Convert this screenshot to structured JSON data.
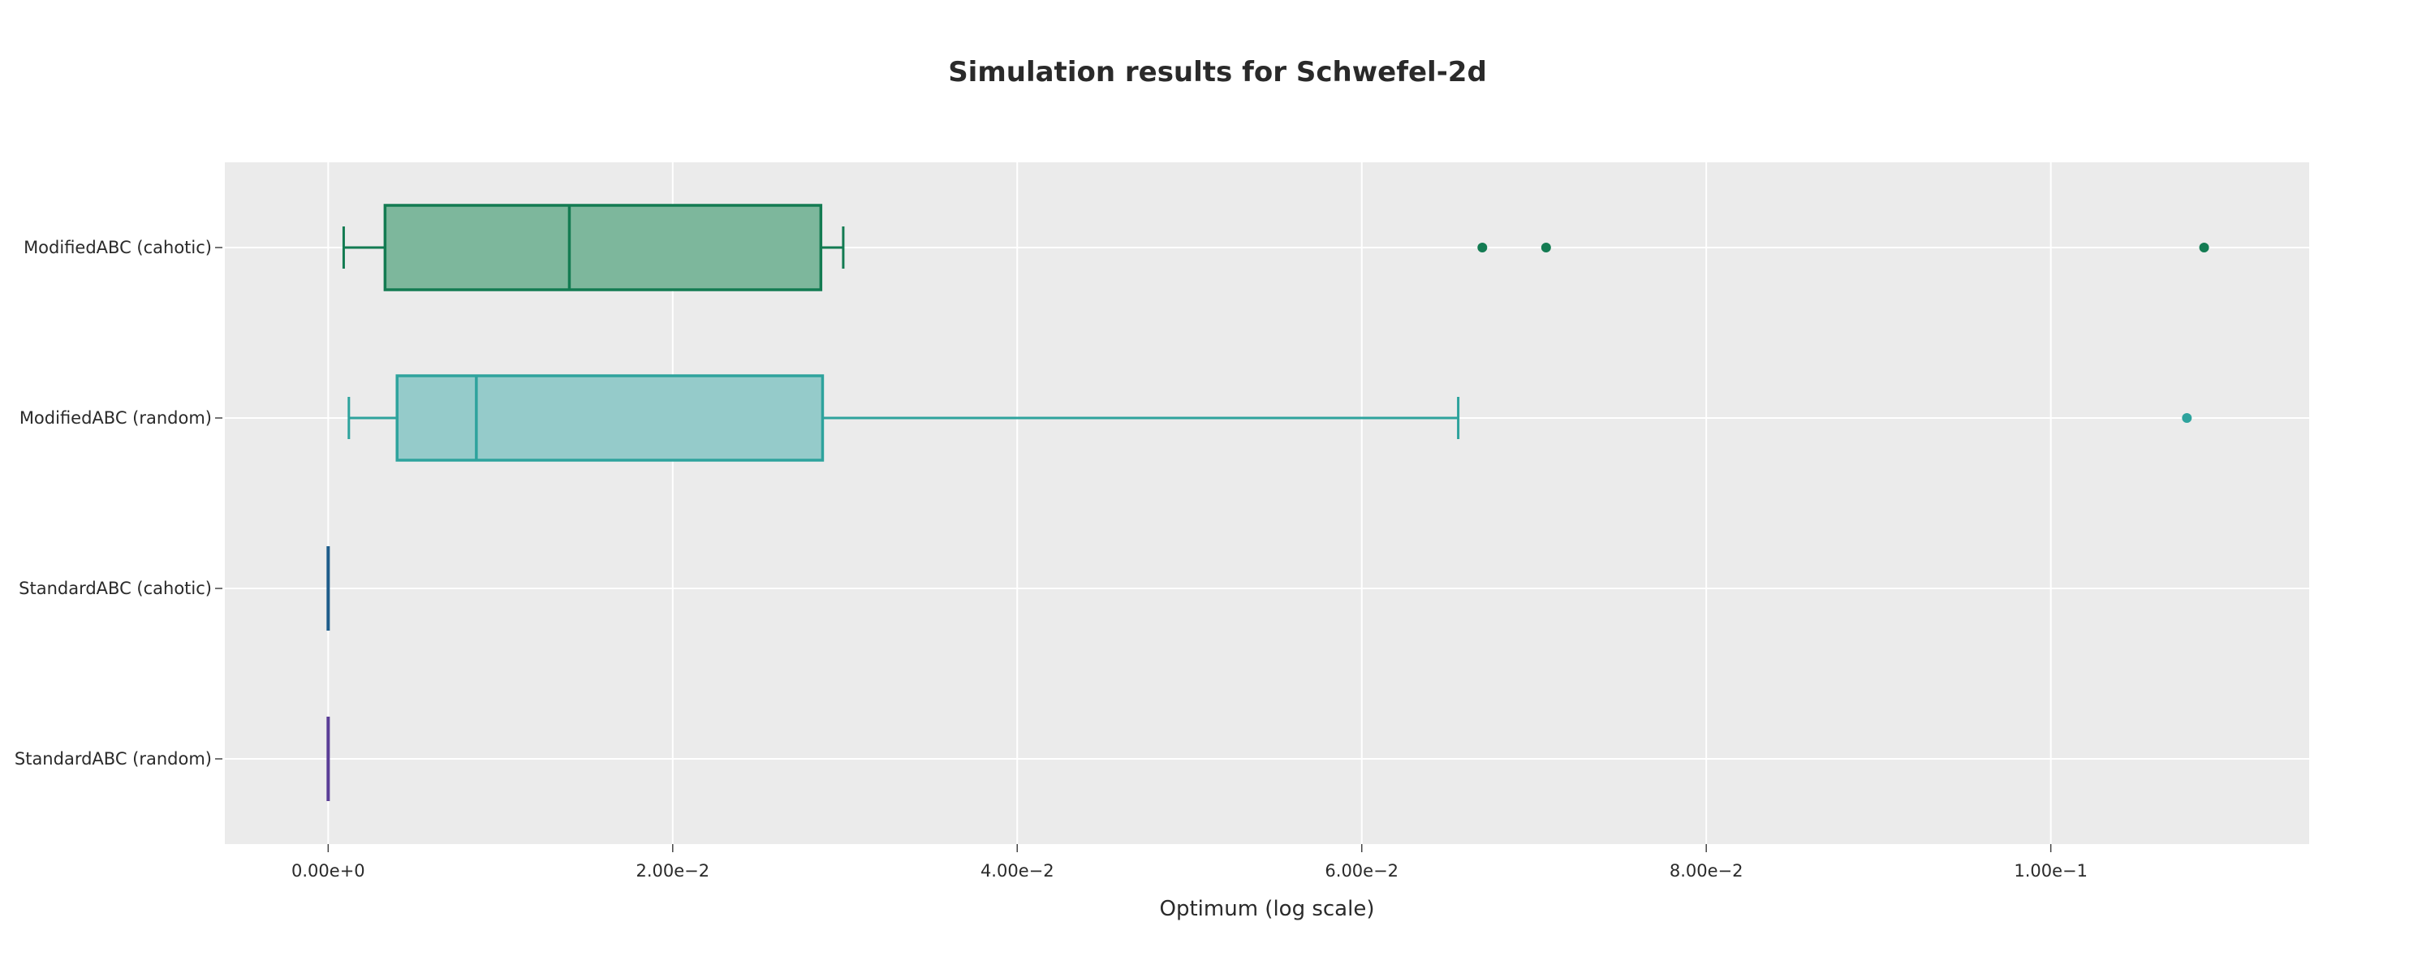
{
  "chart_data": {
    "type": "box",
    "orientation": "horizontal",
    "title": "Simulation results for Schwefel-2d",
    "xlabel": "Optimum (log scale)",
    "ylabel": "",
    "xlim": [
      -0.006,
      0.115
    ],
    "x_ticks": [
      0,
      0.02,
      0.04,
      0.06,
      0.08,
      0.1
    ],
    "x_tick_labels": [
      "0.00e+0",
      "2.00e−2",
      "4.00e−2",
      "6.00e−2",
      "8.00e−2",
      "1.00e−1"
    ],
    "grid": true,
    "legend": "none",
    "background": "#ebebeb",
    "series": [
      {
        "name": "ModifiedABC (cahotic)",
        "color": "#137b52",
        "fill": "#7db79c",
        "whisker_low": 0.0009,
        "q1": 0.0033,
        "median": 0.014,
        "q3": 0.0286,
        "whisker_high": 0.0299,
        "outliers": [
          0.067,
          0.0707,
          0.1089
        ]
      },
      {
        "name": "ModifiedABC (random)",
        "color": "#2ea39d",
        "fill": "#95cbca",
        "whisker_low": 0.0012,
        "q1": 0.004,
        "median": 0.0086,
        "q3": 0.0287,
        "whisker_high": 0.0656,
        "outliers": [
          0.1079
        ]
      },
      {
        "name": "StandardABC (cahotic)",
        "color": "#1e5c8a",
        "fill": "#1e5c8a",
        "whisker_low": 0,
        "q1": 0,
        "median": 0,
        "q3": 0,
        "whisker_high": 0,
        "outliers": []
      },
      {
        "name": "StandardABC (random)",
        "color": "#5a3d96",
        "fill": "#5a3d96",
        "whisker_low": 0,
        "q1": 0,
        "median": 0,
        "q3": 0,
        "whisker_high": 0,
        "outliers": []
      }
    ]
  }
}
